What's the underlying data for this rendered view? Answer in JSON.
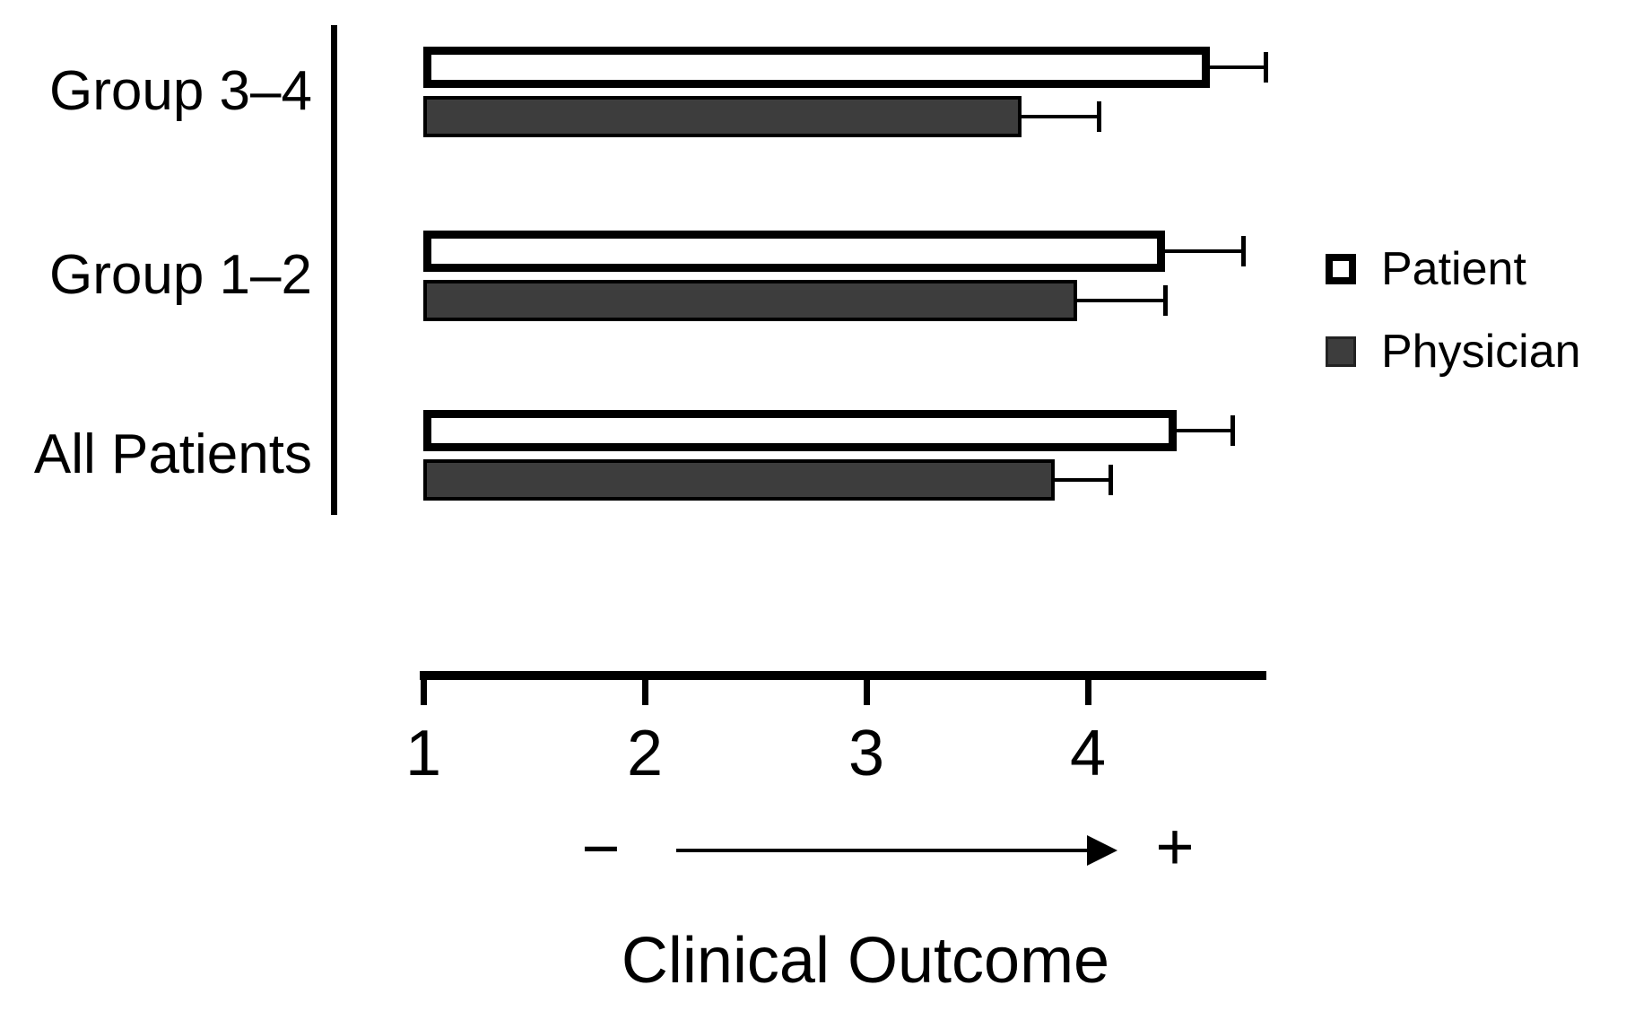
{
  "figure": {
    "background": "#ffffff",
    "accent_black": "#000000",
    "physician_fill": "#3d3d3d",
    "patient_fill": "#ffffff"
  },
  "chart_data": {
    "type": "bar",
    "orientation": "horizontal",
    "xlabel": "Clinical Outcome",
    "categories": [
      "Group 3–4",
      "Group 1–2",
      "All Patients"
    ],
    "series": [
      {
        "name": "Patient",
        "fill": "#ffffff",
        "values": [
          4.55,
          4.35,
          4.4
        ],
        "error_upper_end": [
          4.8,
          4.7,
          4.65
        ]
      },
      {
        "name": "Physician",
        "fill": "#3d3d3d",
        "values": [
          3.7,
          3.95,
          3.85
        ],
        "error_upper_end": [
          4.05,
          4.35,
          4.1
        ]
      }
    ],
    "x_tick_labels": [
      "1",
      "2",
      "3",
      "4"
    ],
    "x_tick_values": [
      1,
      2,
      3,
      4
    ],
    "xlim": [
      1,
      4.8
    ],
    "error_bars": "upper only, capped",
    "legend_position": "right of Group 1–2 row",
    "axis_annotations": {
      "negative_symbol": "−",
      "positive_symbol": "+",
      "arrow_direction": "right"
    }
  }
}
